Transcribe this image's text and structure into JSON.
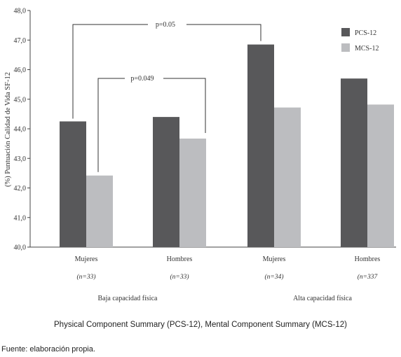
{
  "chart_data": {
    "type": "bar",
    "ylabel": "(%) Puntuación Calidad de Vida SF-12",
    "ylim": [
      40.0,
      48.0
    ],
    "yticks": [
      "40,0",
      "41,0",
      "42,0",
      "43,0",
      "44,0",
      "45,0",
      "46,0",
      "47,0",
      "48,0"
    ],
    "categories": [
      "Mujeres",
      "Hombres",
      "Mujeres",
      "Hombres"
    ],
    "n_labels": [
      "(n=33)",
      "(n=33)",
      "(n=34)",
      "(n=337"
    ],
    "groups": [
      {
        "label": "Baja capacidad física"
      },
      {
        "label": "Alta capacidad física"
      }
    ],
    "series": [
      {
        "name": "PCS-12",
        "color": "#58585a",
        "values": [
          44.25,
          44.4,
          46.85,
          45.7
        ]
      },
      {
        "name": "MCS-12",
        "color": "#bcbdc0",
        "values": [
          42.42,
          43.67,
          44.72,
          44.82
        ]
      }
    ],
    "annotations": [
      "p=0.05",
      "p=0.049"
    ],
    "legend_position": "top-right"
  },
  "caption": "Physical Component Summary (PCS-12), Mental Component Summary (MCS-12)",
  "source": "Fuente: elaboración propia."
}
